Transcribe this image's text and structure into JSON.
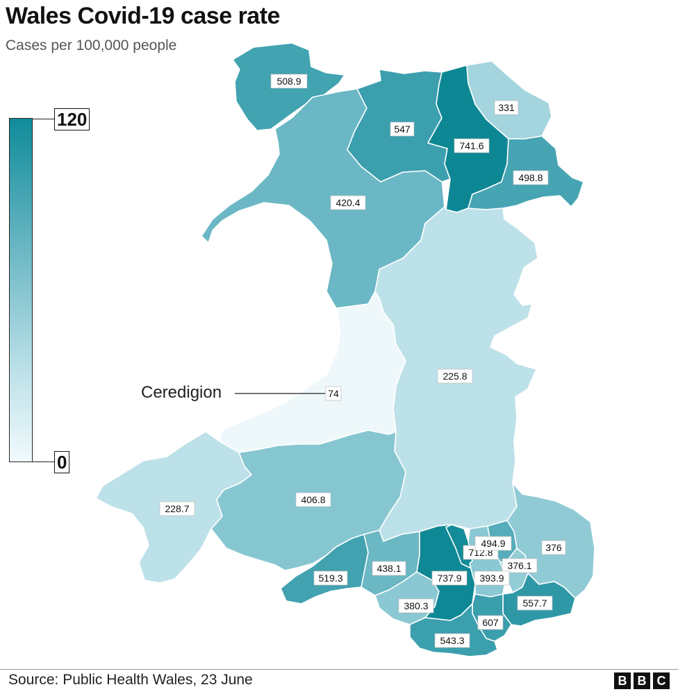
{
  "header": {
    "title": "Wales Covid-19 case rate",
    "subtitle": "Cases per 100,000 people"
  },
  "scale": {
    "max_label": "120",
    "min_label": "0"
  },
  "callout": {
    "label": "Ceredigion"
  },
  "regions": {
    "anglesey": {
      "value": "508.9",
      "color": "#42a3b1"
    },
    "gwynedd": {
      "value": "420.4",
      "color": "#6bb7c5"
    },
    "conwy": {
      "value": "547",
      "color": "#3c9fae"
    },
    "denbighshire": {
      "value": "741.6",
      "color": "#0e8794"
    },
    "flintshire": {
      "value": "331",
      "color": "#a4d4de"
    },
    "wrexham": {
      "value": "498.8",
      "color": "#46a4b3"
    },
    "powys": {
      "value": "225.8",
      "color": "#bde1e8"
    },
    "ceredigion": {
      "value": "74",
      "color": "#eef8fb"
    },
    "pembrokeshire": {
      "value": "228.7",
      "color": "#bde1e8"
    },
    "carmarthenshire": {
      "value": "406.8",
      "color": "#86c6d1"
    },
    "swansea": {
      "value": "519.3",
      "color": "#42a2b0"
    },
    "neath_port_talbot": {
      "value": "438.1",
      "color": "#6cb7c4"
    },
    "bridgend": {
      "value": "380.3",
      "color": "#8ac8d3"
    },
    "rhondda_cynon_taf": {
      "value": "737.9",
      "color": "#0f8895"
    },
    "merthyr_tydfil": {
      "value": "712.8",
      "color": "#148b98"
    },
    "caerphilly": {
      "value": "393.9",
      "color": "#8ac8d3"
    },
    "blaenau_gwent": {
      "value": "494.9",
      "color": "#55acba"
    },
    "torfaen": {
      "value": "376.1",
      "color": "#94ccd6"
    },
    "monmouthshire": {
      "value": "376",
      "color": "#90cbd5"
    },
    "newport": {
      "value": "557.7",
      "color": "#2f98a7"
    },
    "cardiff": {
      "value": "607",
      "color": "#3a9ead"
    },
    "vale_of_glamorgan": {
      "value": "543.3",
      "color": "#3c9fae"
    }
  },
  "footer": {
    "source": "Source: Public Health Wales, 23 June",
    "logo_letters": [
      "B",
      "B",
      "C"
    ]
  }
}
